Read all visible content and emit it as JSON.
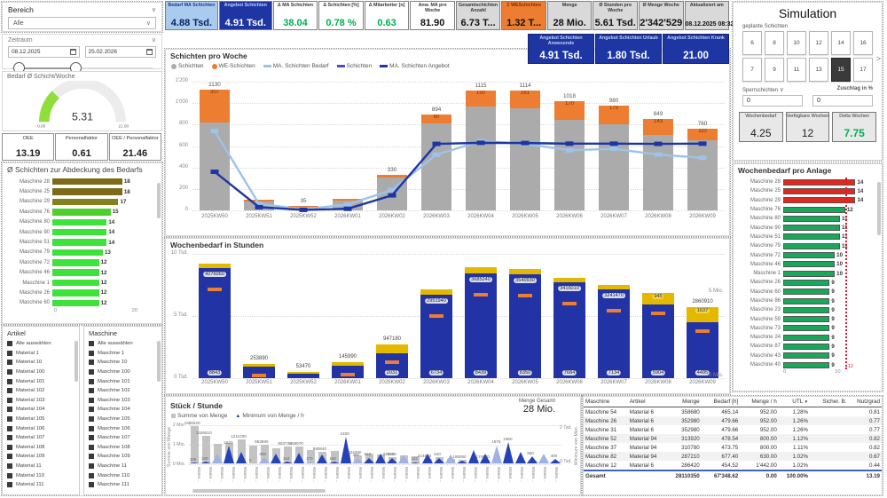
{
  "colors": {
    "darkblue": "#1E36A4",
    "lightblue": "#A9CCEE",
    "line_bedarf": "#9DC3E6",
    "orange": "#ED7D31",
    "gray_bar": "#ABABAB",
    "green_text": "#00B050",
    "yellow": "#E5B800",
    "bar_blue": "#2233A6",
    "red_bar": "#E0281E",
    "green_bar": "#18A85A",
    "mid_line": "#4d4dcc"
  },
  "sidebar": {
    "bereich": {
      "label": "Bereich",
      "value": "Alle"
    },
    "zeitraum": {
      "label": "Zeitraum",
      "date_from": "08.12.2025",
      "date_to": "25.02.2026"
    },
    "gauge": {
      "title": "Bedarf Ø Schicht/Woche",
      "value": "5.31",
      "min": "0.00",
      "max": "21.00",
      "fraction": 0.253
    },
    "oee_cards": [
      {
        "label": "OEE",
        "value": "13.19"
      },
      {
        "label": "Personalfaktor",
        "value": "0.61"
      },
      {
        "label": "OEE / Personalfaktor",
        "value": "21.46"
      }
    ],
    "coverage": {
      "title": "Ø Schichten zur Abdeckung des Bedarfs",
      "xticks": [
        "0",
        "20"
      ],
      "xmax": 21,
      "items": [
        {
          "label": "Maschine 28",
          "value": 18,
          "color": "#7D6B1A"
        },
        {
          "label": "Maschine 25",
          "value": 18,
          "color": "#7D6B1A"
        },
        {
          "label": "Maschine 29",
          "value": 17,
          "color": "#83801E"
        },
        {
          "label": "Maschine 76",
          "value": 15,
          "color": "#4ED02C"
        },
        {
          "label": "Maschine 80",
          "value": 14,
          "color": "#3DE23A"
        },
        {
          "label": "Maschine 90",
          "value": 14,
          "color": "#3DE23A"
        },
        {
          "label": "Maschine 51",
          "value": 14,
          "color": "#3DE23A"
        },
        {
          "label": "Maschine 79",
          "value": 13,
          "color": "#3DE23A"
        },
        {
          "label": "Maschine 72",
          "value": 12,
          "color": "#3DE23A"
        },
        {
          "label": "Maschine 46",
          "value": 12,
          "color": "#3DE23A"
        },
        {
          "label": "Maschine 1",
          "value": 12,
          "color": "#3DE23A"
        },
        {
          "label": "Maschine 26",
          "value": 12,
          "color": "#3DE23A"
        },
        {
          "label": "Maschine 60",
          "value": 12,
          "color": "#3DE23A"
        }
      ]
    },
    "artikel_list": {
      "title": "Artikel",
      "items": [
        "Alle auswählen",
        "Material 1",
        "Material 10",
        "Material 100",
        "Material 101",
        "Material 102",
        "Material 103",
        "Material 104",
        "Material 105",
        "Material 106",
        "Material 107",
        "Material 108",
        "Material 109",
        "Material 11",
        "Material 110",
        "Material 111"
      ]
    },
    "maschine_list": {
      "title": "Maschine",
      "items": [
        "Alle auswählen",
        "Maschine 1",
        "Maschine 10",
        "Maschine 100",
        "Maschine 101",
        "Maschine 102",
        "Maschine 103",
        "Maschine 104",
        "Maschine 105",
        "Maschine 106",
        "Maschine 107",
        "Maschine 108",
        "Maschine 109",
        "Maschine 11",
        "Maschine 110",
        "Maschine 111"
      ]
    }
  },
  "kpi_row": [
    {
      "label": "Bedarf MA Schichten",
      "value": "4.88 Tsd.",
      "style": "lightblue"
    },
    {
      "label": "Angebot Schichten",
      "value": "4.91 Tsd.",
      "style": "darkblue"
    },
    {
      "label": "Δ MA Schichten",
      "value": "38.04",
      "style": "green"
    },
    {
      "label": "Δ Schichten [%]",
      "value": "0.78 %",
      "style": "green"
    },
    {
      "label": "Δ Mitarbeiter [n]",
      "value": "0.63",
      "style": "green"
    },
    {
      "label": "Anw. MA pro Woche",
      "value": "81.90",
      "style": "plain"
    },
    {
      "label": "Gesamtschichten Anzahl",
      "value": "6.73 T...",
      "style": "gray"
    },
    {
      "label": "Σ WESchichten",
      "value": "1.32 T...",
      "style": "orange"
    },
    {
      "label": "Menge",
      "value": "28 Mio.",
      "style": "gray"
    },
    {
      "label": "Ø Stunden pro Woche",
      "value": "5.61 Tsd.",
      "style": "gray"
    },
    {
      "label": "Ø Menge Woche",
      "value": "2'342'529",
      "style": "gray"
    },
    {
      "label": "Aktualisiert am",
      "value": "08.12.2025 08:32",
      "style": "gray",
      "small": true
    }
  ],
  "kpi_row2": [
    {
      "label": "Angebot Schichten Anwesende",
      "value": "4.91 Tsd."
    },
    {
      "label": "Angebot Schichten Urlaub",
      "value": "1.80 Tsd."
    },
    {
      "label": "Angebot Schichten Krank",
      "value": "21.00"
    }
  ],
  "sim": {
    "title": "Simulation",
    "planned_label": "geplante Schichten",
    "rows": [
      [
        "6",
        "8",
        "10",
        "12",
        "14",
        "16"
      ],
      [
        "7",
        "9",
        "11",
        "13",
        "15",
        "17"
      ]
    ],
    "selected": "15",
    "arrow": ">",
    "sperr_label": "Sperrschichten",
    "sperr_value": "0",
    "zuschlag_label": "Zuschlag in %",
    "zuschlag_value": "0",
    "cards": [
      {
        "label": "Wochenbedarf",
        "value": "4.25",
        "green": false
      },
      {
        "label": "Verfügbare Wochen",
        "value": "12",
        "green": false
      },
      {
        "label": "Delta Wochen",
        "value": "7.75",
        "green": true
      }
    ]
  },
  "anlage": {
    "title": "Wochenbedarf pro Anlage",
    "target": 12,
    "target_label": "12",
    "xmax": 22,
    "xticks": [
      "0",
      "10",
      "20"
    ],
    "items": [
      {
        "label": "Maschine 28",
        "value": 14,
        "color": "red"
      },
      {
        "label": "Maschine 25",
        "value": 14,
        "color": "red"
      },
      {
        "label": "Maschine 29",
        "value": 14,
        "color": "red"
      },
      {
        "label": "Maschine 76",
        "value": 12,
        "color": "green"
      },
      {
        "label": "Maschine 80",
        "value": 11,
        "color": "green"
      },
      {
        "label": "Maschine 90",
        "value": 11,
        "color": "green"
      },
      {
        "label": "Maschine 51",
        "value": 11,
        "color": "green"
      },
      {
        "label": "Maschine 79",
        "value": 11,
        "color": "green"
      },
      {
        "label": "Maschine 72",
        "value": 10,
        "color": "green"
      },
      {
        "label": "Maschine 46",
        "value": 10,
        "color": "green"
      },
      {
        "label": "Maschine 1",
        "value": 10,
        "color": "green"
      },
      {
        "label": "Maschine 26",
        "value": 9,
        "color": "green"
      },
      {
        "label": "Maschine 60",
        "value": 9,
        "color": "green"
      },
      {
        "label": "Maschine 86",
        "value": 9,
        "color": "green"
      },
      {
        "label": "Maschine 23",
        "value": 9,
        "color": "green"
      },
      {
        "label": "Maschine 59",
        "value": 9,
        "color": "green"
      },
      {
        "label": "Maschine 73",
        "value": 9,
        "color": "green"
      },
      {
        "label": "Maschine 24",
        "value": 9,
        "color": "green"
      },
      {
        "label": "Maschine 87",
        "value": 9,
        "color": "green"
      },
      {
        "label": "Maschine 43",
        "value": 9,
        "color": "green"
      },
      {
        "label": "Maschine 40",
        "value": 9,
        "color": "green"
      }
    ]
  },
  "table": {
    "columns": [
      "Maschine",
      "Artikel",
      "Menge",
      "Bedarf [h]",
      "Menge / h",
      "UTL",
      "Sicher. B.",
      "Nutzgrad"
    ],
    "sort_column": "UTL",
    "rows": [
      [
        "Maschine 54",
        "Material 6",
        "358680",
        "465.14",
        "952.00",
        "1.28%",
        "",
        "0.81"
      ],
      [
        "Maschine 26",
        "Material 6",
        "352980",
        "479.66",
        "952.00",
        "1.26%",
        "",
        "0.77"
      ],
      [
        "Maschine 31",
        "Material 6",
        "352980",
        "479.66",
        "952.00",
        "1.26%",
        "",
        "0.77"
      ],
      [
        "Maschine 52",
        "Material 94",
        "313920",
        "478.54",
        "800.00",
        "1.12%",
        "",
        "0.82"
      ],
      [
        "Maschine 37",
        "Material 94",
        "310780",
        "473.75",
        "800.00",
        "1.11%",
        "",
        "0.82"
      ],
      [
        "Maschine 82",
        "Material 94",
        "287210",
        "677.40",
        "630.00",
        "1.02%",
        "",
        "0.67"
      ],
      [
        "Maschine 12",
        "Material 6",
        "286420",
        "454.52",
        "1'442.00",
        "1.02%",
        "",
        "0.44"
      ]
    ],
    "total_row": [
      "Gesamt",
      "",
      "28110350",
      "67'348.62",
      "0.00",
      "100.00%",
      "",
      "13.19"
    ]
  },
  "bottom_extra": {
    "menge_gesamt_label": "Menge Gesamt",
    "menge_gesamt_value": "28 Mio."
  },
  "chart_data": [
    {
      "id": "schichten_pro_woche",
      "type": "bar",
      "title": "Schichten pro Woche",
      "legend": [
        "Schichten",
        "WE-Schichten",
        "MA. Schichten Bedarf",
        "Schichten",
        "MA. Schichten Angebot"
      ],
      "categories": [
        "2025KW50",
        "2025KW51",
        "2025KW52",
        "2026KW01",
        "2026KW02",
        "2026KW03",
        "2026KW04",
        "2026KW05",
        "2026KW06",
        "2026KW07",
        "2026KW08",
        "2026KW09"
      ],
      "series": [
        {
          "name": "Schichten",
          "type": "bar",
          "values": [
            823,
            85,
            32,
            95,
            305,
            814,
            965,
            953,
            848,
            807,
            706,
            650
          ]
        },
        {
          "name": "WE-Schichten",
          "type": "bar",
          "values": [
            307,
            10,
            3,
            10,
            25,
            80,
            150,
            161,
            170,
            173,
            143,
            110
          ]
        },
        {
          "name": "MA. Schichten Bedarf",
          "type": "line",
          "values": [
            740,
            60,
            10,
            55,
            190,
            520,
            645,
            620,
            560,
            575,
            520,
            490
          ]
        },
        {
          "name": "MA. Schichten Angebot",
          "type": "line",
          "values": [
            360,
            30,
            5,
            15,
            140,
            620,
            630,
            628,
            622,
            622,
            620,
            622
          ]
        }
      ],
      "total_labels": [
        "1130",
        "",
        "35",
        "",
        "330",
        "894",
        "1115",
        "1114",
        "1018",
        "980",
        "849",
        "760"
      ],
      "we_labels": [
        "307",
        "",
        "",
        "",
        "",
        "80",
        "150",
        "161",
        "170",
        "173",
        "143",
        "110"
      ],
      "yticks": [
        "1'200",
        "1'000",
        "800",
        "600",
        "400",
        "200",
        "0"
      ],
      "ymax": 1200
    },
    {
      "id": "wochenbedarf_in_stunden",
      "type": "bar",
      "title": "Wochenbedarf in Stunden",
      "categories": [
        "2025KW50",
        "2025KW51",
        "2025KW52",
        "2026KW01",
        "2026KW02",
        "2026KW03",
        "2026KW04",
        "2026KW05",
        "2026KW06",
        "2026KW07",
        "2026KW08",
        "2026KW09"
      ],
      "hours": [
        8843,
        900,
        350,
        1000,
        2031,
        6734,
        8439,
        8350,
        7684,
        7134,
        5904,
        4495
      ],
      "yellow": [
        350,
        260,
        120,
        260,
        650,
        420,
        480,
        450,
        420,
        380,
        950,
        1200
      ],
      "hours_labels": [
        "8843",
        "",
        "",
        "",
        "2031",
        "6734",
        "8439",
        "8350",
        "7684",
        "7134",
        "5904",
        "4495"
      ],
      "qty_pill_labels": [
        "4276060",
        "",
        "",
        "",
        "",
        "2951940",
        "3685240",
        "3540930",
        "3416010",
        "3241470",
        "",
        ""
      ],
      "qty_plain_labels": [
        "",
        "253890",
        "53470",
        "145990",
        "947180",
        "",
        "",
        "",
        "",
        "",
        "",
        "2860910"
      ],
      "yellow_labels": [
        "",
        "",
        "",
        "",
        "",
        "",
        "",
        "",
        "",
        "",
        "945",
        "1637"
      ],
      "yticks_left": [
        "10 Tsd.",
        "5 Tsd.",
        "0 Tsd."
      ],
      "yticks_right": [
        "5 Mio.",
        "0 Mio."
      ],
      "ymax": 10000
    },
    {
      "id": "stueck_pro_stunde",
      "type": "bar",
      "title": "Stück / Stunde",
      "legend": [
        "Summe von Menge",
        "Minimum von Menge / h"
      ],
      "ylabel_left": "Summe von Menge",
      "ylabel_right": "Minimum von Men...",
      "yticks_left": [
        "2 Mio.",
        "1 Mio.",
        "0 Mio."
      ],
      "yticks_right": [
        "2 Tsd.",
        "0 Tsd."
      ],
      "x_label_repeat": "Materi...",
      "bar_ymax": 2000000,
      "tri_ymax": 2400,
      "bars": [
        1889220,
        1426510,
        980000,
        1050000,
        1211030,
        900000,
        963890,
        780000,
        853730,
        859970,
        700000,
        590840,
        620000,
        550000,
        424360,
        520000,
        450000,
        336060,
        400000,
        350000,
        214940,
        300000,
        250000,
        195060,
        200000,
        174070,
        160000,
        150000,
        140000,
        130000,
        120000,
        100000
      ],
      "tris": [
        105,
        180,
        900,
        1620,
        1100,
        0,
        600,
        900,
        164,
        1000,
        170,
        800,
        180,
        2400,
        480,
        540,
        900,
        540,
        800,
        133,
        900,
        540,
        800,
        300,
        1200,
        900,
        1675,
        1960,
        1100,
        660,
        900,
        400
      ],
      "bar_labels": [
        "1889220",
        "1426510",
        "",
        "",
        "1211030",
        "",
        "963890",
        "",
        "853730",
        "859970",
        "",
        "590840",
        "",
        "",
        "424360",
        "",
        "",
        "336060",
        "",
        "",
        "214940",
        "",
        "",
        "195060",
        "",
        "174070",
        "",
        "",
        "",
        "",
        "",
        ""
      ],
      "tri_labels": [
        "105",
        "180",
        "",
        "1620",
        "",
        "0",
        "600",
        "",
        "164",
        "",
        "170",
        "",
        "180",
        "2400",
        "480",
        "540",
        "",
        "540",
        "",
        "133",
        "",
        "540",
        "",
        "",
        "",
        "",
        "1675",
        "1960",
        "",
        "660",
        "",
        "400"
      ]
    }
  ]
}
